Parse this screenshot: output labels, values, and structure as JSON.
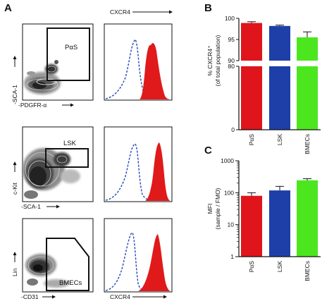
{
  "panel_labels": {
    "a": "A",
    "b": "B",
    "c": "C"
  },
  "panel_a": {
    "histogram_header": "CXCR4",
    "rows": [
      {
        "gate_label": "PαS",
        "y_axis_label": "-SCA-1",
        "x_axis_label": "-PDGFR-α",
        "histogram_x_label": ""
      },
      {
        "gate_label": "LSK",
        "y_axis_label": "c-Kit",
        "x_axis_label": "-SCA-1",
        "histogram_x_label": ""
      },
      {
        "gate_label": "BMECs",
        "y_axis_label": "Lin",
        "x_axis_label": "-CD31",
        "histogram_x_label": "CXCR4"
      }
    ]
  },
  "colors": {
    "PαS": "#e0141b",
    "LSK": "#1f3fa8",
    "BMECs": "#4ce61f",
    "histogram_fill": "#e01a1a",
    "fmo_dash": "#2446b8"
  },
  "chart_data": [
    {
      "type": "bar",
      "panel": "B",
      "categories": [
        "PαS",
        "LSK",
        "BMECs"
      ],
      "values": [
        98.9,
        98.2,
        95.5
      ],
      "errors": [
        0.3,
        0.2,
        1.3
      ],
      "ylabel": "% CXCR4⁺",
      "ylabel_sub": "(of total population)",
      "ylim": [
        0,
        100
      ],
      "axis_break": [
        80,
        90
      ],
      "yticks_upper": [
        "100",
        "95",
        "90"
      ],
      "yticks_lower": [
        "80",
        "0"
      ],
      "grid": false
    },
    {
      "type": "bar",
      "panel": "C",
      "categories": [
        "PαS",
        "LSK",
        "BMECs"
      ],
      "values": [
        80,
        118,
        245
      ],
      "errors": [
        20,
        40,
        30
      ],
      "ylabel": "MFI",
      "ylabel_sub": "(sample / FMO)",
      "yscale": "log",
      "ylim": [
        1,
        1000
      ],
      "yticks": [
        "1000",
        "100",
        "10",
        "1"
      ],
      "grid": false
    }
  ]
}
